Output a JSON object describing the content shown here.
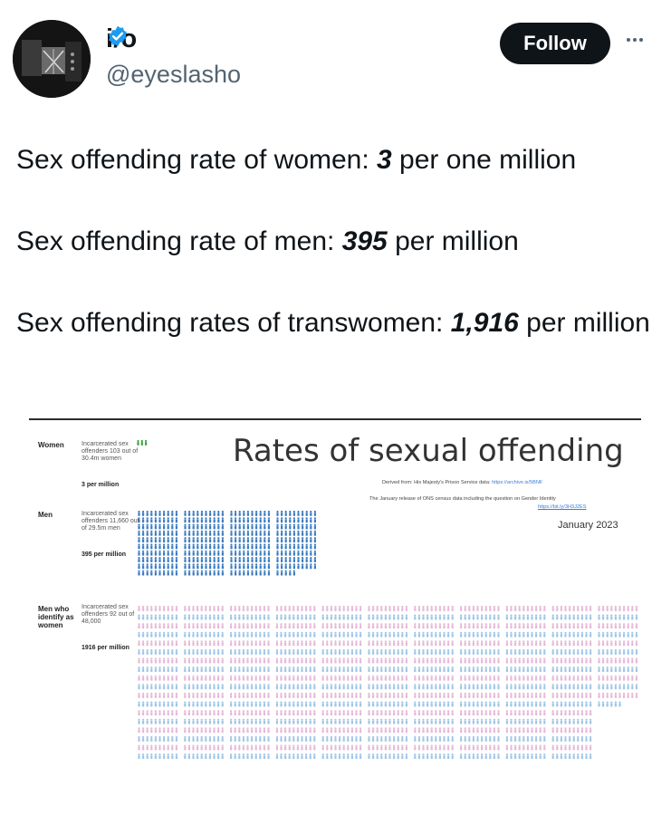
{
  "post": {
    "display_name": "i/o",
    "handle": "@eyeslasho",
    "follow_label": "Follow",
    "line1": {
      "prefix": "Sex offending rate of women: ",
      "value": "3",
      "suffix": " per one million"
    },
    "line2": {
      "prefix": "Sex offending rate of men: ",
      "value": "395",
      "suffix": " per million"
    },
    "line3": {
      "prefix": "Sex offending rates of transwomen: ",
      "value": "1,916",
      "suffix": " per million"
    }
  },
  "colors": {
    "verified": "#1d9bf0",
    "men_icon": "#3d7cc0",
    "trans_pink": "#e6b8d6",
    "trans_blue": "#9fc6e8",
    "women_icon": "#37a53a"
  },
  "infographic": {
    "title": "Rates of sexual offending",
    "source_line1": {
      "text": "Derived from: His Majesty's Prison Service data: ",
      "link": "https://archive.is/5BNF"
    },
    "source_line2": "The January release of ONS census data including the question on Gender Identity",
    "source_line3": "https://bit.ly/3H3J2ES",
    "date": "January 2023",
    "rows": [
      {
        "category": "Women",
        "description": "Incarcerated sex offenders 103 out of 30.4m women",
        "rate": "3 per million",
        "icon_count": 3
      },
      {
        "category": "Men",
        "description": "Incarcerated sex offenders 11,660 out of 29.5m men",
        "rate": "395 per million",
        "icon_count": 395
      },
      {
        "category": "Men who identify as women",
        "description": "Incarcerated sex offenders 92 out of 48,000",
        "rate": "1916 per million",
        "icon_count": 1916
      }
    ]
  }
}
